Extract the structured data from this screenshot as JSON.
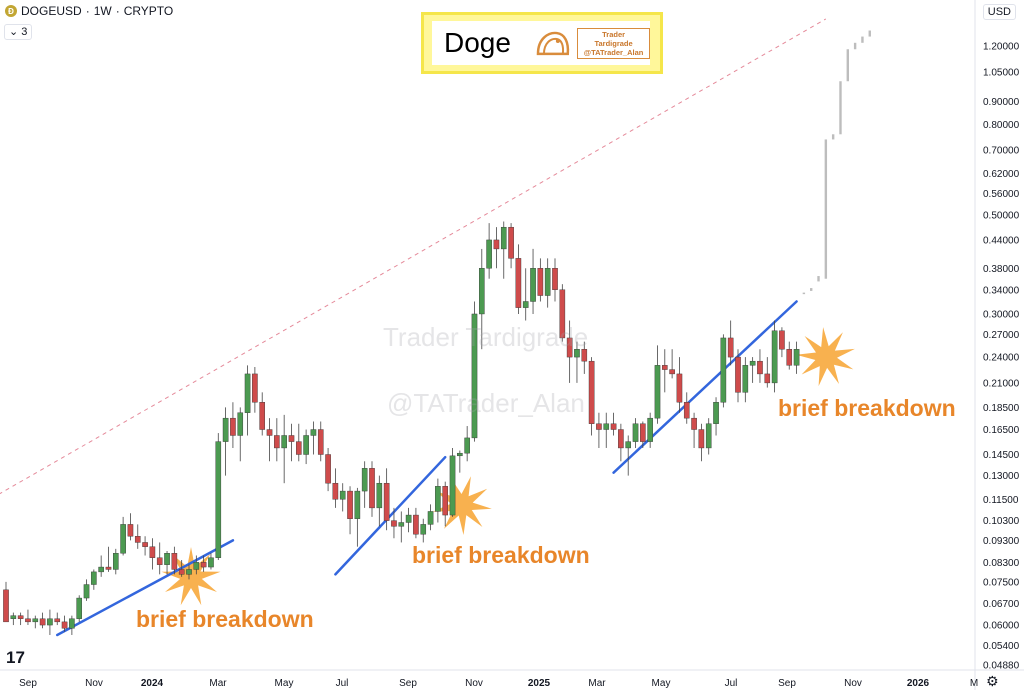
{
  "header": {
    "symbol": "DOGEUSD",
    "interval": "1W",
    "exchange": "CRYPTO",
    "separator": " · ",
    "indicator_count": "3",
    "currency": "USD"
  },
  "logo": {
    "title": "Doge",
    "brand_line1": "Trader Tardigrade",
    "brand_line2": "@TATrader_Alan"
  },
  "watermark": {
    "line1": "Trader Tardigrade",
    "line2": "@TATrader_Alan"
  },
  "annotations": [
    "brief breakdown",
    "brief breakdown",
    "brief breakdown"
  ],
  "tradingview_mark": "17",
  "colors": {
    "up": "#4c9a51",
    "down": "#cf4b4b",
    "projection": "#bdbdbd",
    "support": "#3366dd",
    "resistance": "#e58a9a",
    "starburst": "#f7a83c",
    "annotation": "#e8862a",
    "logo_bg": "#fff79a"
  },
  "chart_data": {
    "type": "candlestick",
    "title": "",
    "xlabel": "",
    "ylabel": "",
    "y_scale": "log",
    "ylim": [
      0.0485,
      1.33
    ],
    "y_ticks": [
      "1.20000",
      "1.05000",
      "0.90000",
      "0.80000",
      "0.70000",
      "0.62000",
      "0.56000",
      "0.50000",
      "0.44000",
      "0.38000",
      "0.34000",
      "0.30000",
      "0.27000",
      "0.24000",
      "0.21000",
      "0.18500",
      "0.16500",
      "0.14500",
      "0.13000",
      "0.11500",
      "0.10300",
      "0.09300",
      "0.08300",
      "0.07500",
      "0.06700",
      "0.06000",
      "0.05400",
      "0.04880"
    ],
    "x_ticks": [
      "Sep",
      "Nov",
      "2024",
      "Mar",
      "May",
      "Jul",
      "Sep",
      "Nov",
      "2025",
      "Mar",
      "May",
      "Jul",
      "Sep",
      "Nov",
      "2026",
      "M"
    ],
    "grid": false,
    "candles": [
      {
        "o": 0.072,
        "h": 0.075,
        "l": 0.062,
        "c": 0.061
      },
      {
        "o": 0.062,
        "h": 0.064,
        "l": 0.06,
        "c": 0.063
      },
      {
        "o": 0.063,
        "h": 0.064,
        "l": 0.06,
        "c": 0.062
      },
      {
        "o": 0.062,
        "h": 0.065,
        "l": 0.06,
        "c": 0.061
      },
      {
        "o": 0.061,
        "h": 0.063,
        "l": 0.059,
        "c": 0.062
      },
      {
        "o": 0.062,
        "h": 0.064,
        "l": 0.059,
        "c": 0.06
      },
      {
        "o": 0.06,
        "h": 0.065,
        "l": 0.057,
        "c": 0.062
      },
      {
        "o": 0.062,
        "h": 0.064,
        "l": 0.06,
        "c": 0.061
      },
      {
        "o": 0.061,
        "h": 0.063,
        "l": 0.058,
        "c": 0.059
      },
      {
        "o": 0.059,
        "h": 0.063,
        "l": 0.057,
        "c": 0.062
      },
      {
        "o": 0.062,
        "h": 0.07,
        "l": 0.061,
        "c": 0.069
      },
      {
        "o": 0.069,
        "h": 0.076,
        "l": 0.068,
        "c": 0.074
      },
      {
        "o": 0.074,
        "h": 0.08,
        "l": 0.072,
        "c": 0.079
      },
      {
        "o": 0.079,
        "h": 0.086,
        "l": 0.077,
        "c": 0.081
      },
      {
        "o": 0.081,
        "h": 0.09,
        "l": 0.079,
        "c": 0.08
      },
      {
        "o": 0.08,
        "h": 0.089,
        "l": 0.078,
        "c": 0.087
      },
      {
        "o": 0.087,
        "h": 0.105,
        "l": 0.086,
        "c": 0.101
      },
      {
        "o": 0.101,
        "h": 0.107,
        "l": 0.093,
        "c": 0.095
      },
      {
        "o": 0.095,
        "h": 0.101,
        "l": 0.089,
        "c": 0.092
      },
      {
        "o": 0.092,
        "h": 0.095,
        "l": 0.086,
        "c": 0.09
      },
      {
        "o": 0.09,
        "h": 0.094,
        "l": 0.08,
        "c": 0.085
      },
      {
        "o": 0.085,
        "h": 0.092,
        "l": 0.078,
        "c": 0.082
      },
      {
        "o": 0.082,
        "h": 0.088,
        "l": 0.078,
        "c": 0.087
      },
      {
        "o": 0.087,
        "h": 0.09,
        "l": 0.078,
        "c": 0.08
      },
      {
        "o": 0.08,
        "h": 0.084,
        "l": 0.077,
        "c": 0.078
      },
      {
        "o": 0.078,
        "h": 0.082,
        "l": 0.076,
        "c": 0.08
      },
      {
        "o": 0.08,
        "h": 0.086,
        "l": 0.078,
        "c": 0.083
      },
      {
        "o": 0.083,
        "h": 0.086,
        "l": 0.079,
        "c": 0.081
      },
      {
        "o": 0.081,
        "h": 0.087,
        "l": 0.08,
        "c": 0.085
      },
      {
        "o": 0.085,
        "h": 0.162,
        "l": 0.084,
        "c": 0.155
      },
      {
        "o": 0.155,
        "h": 0.185,
        "l": 0.13,
        "c": 0.175
      },
      {
        "o": 0.175,
        "h": 0.19,
        "l": 0.15,
        "c": 0.16
      },
      {
        "o": 0.16,
        "h": 0.185,
        "l": 0.14,
        "c": 0.18
      },
      {
        "o": 0.18,
        "h": 0.23,
        "l": 0.16,
        "c": 0.22
      },
      {
        "o": 0.22,
        "h": 0.228,
        "l": 0.18,
        "c": 0.19
      },
      {
        "o": 0.19,
        "h": 0.2,
        "l": 0.16,
        "c": 0.165
      },
      {
        "o": 0.165,
        "h": 0.175,
        "l": 0.14,
        "c": 0.16
      },
      {
        "o": 0.16,
        "h": 0.175,
        "l": 0.14,
        "c": 0.15
      },
      {
        "o": 0.15,
        "h": 0.178,
        "l": 0.125,
        "c": 0.16
      },
      {
        "o": 0.16,
        "h": 0.17,
        "l": 0.14,
        "c": 0.155
      },
      {
        "o": 0.155,
        "h": 0.17,
        "l": 0.14,
        "c": 0.145
      },
      {
        "o": 0.145,
        "h": 0.165,
        "l": 0.138,
        "c": 0.16
      },
      {
        "o": 0.16,
        "h": 0.172,
        "l": 0.145,
        "c": 0.165
      },
      {
        "o": 0.165,
        "h": 0.172,
        "l": 0.14,
        "c": 0.145
      },
      {
        "o": 0.145,
        "h": 0.15,
        "l": 0.12,
        "c": 0.125
      },
      {
        "o": 0.125,
        "h": 0.135,
        "l": 0.11,
        "c": 0.115
      },
      {
        "o": 0.115,
        "h": 0.125,
        "l": 0.108,
        "c": 0.12
      },
      {
        "o": 0.12,
        "h": 0.123,
        "l": 0.096,
        "c": 0.104
      },
      {
        "o": 0.104,
        "h": 0.122,
        "l": 0.09,
        "c": 0.12
      },
      {
        "o": 0.12,
        "h": 0.14,
        "l": 0.11,
        "c": 0.135
      },
      {
        "o": 0.135,
        "h": 0.14,
        "l": 0.105,
        "c": 0.11
      },
      {
        "o": 0.11,
        "h": 0.13,
        "l": 0.1,
        "c": 0.125
      },
      {
        "o": 0.125,
        "h": 0.135,
        "l": 0.098,
        "c": 0.103
      },
      {
        "o": 0.103,
        "h": 0.11,
        "l": 0.094,
        "c": 0.1
      },
      {
        "o": 0.1,
        "h": 0.108,
        "l": 0.092,
        "c": 0.102
      },
      {
        "o": 0.102,
        "h": 0.11,
        "l": 0.097,
        "c": 0.106
      },
      {
        "o": 0.106,
        "h": 0.11,
        "l": 0.094,
        "c": 0.096
      },
      {
        "o": 0.096,
        "h": 0.104,
        "l": 0.092,
        "c": 0.101
      },
      {
        "o": 0.101,
        "h": 0.112,
        "l": 0.098,
        "c": 0.108
      },
      {
        "o": 0.108,
        "h": 0.128,
        "l": 0.102,
        "c": 0.123
      },
      {
        "o": 0.123,
        "h": 0.126,
        "l": 0.1,
        "c": 0.106
      },
      {
        "o": 0.106,
        "h": 0.15,
        "l": 0.105,
        "c": 0.144
      },
      {
        "o": 0.144,
        "h": 0.148,
        "l": 0.132,
        "c": 0.146
      },
      {
        "o": 0.146,
        "h": 0.168,
        "l": 0.14,
        "c": 0.158
      },
      {
        "o": 0.158,
        "h": 0.32,
        "l": 0.155,
        "c": 0.3
      },
      {
        "o": 0.3,
        "h": 0.42,
        "l": 0.25,
        "c": 0.38
      },
      {
        "o": 0.38,
        "h": 0.48,
        "l": 0.36,
        "c": 0.44
      },
      {
        "o": 0.44,
        "h": 0.47,
        "l": 0.38,
        "c": 0.42
      },
      {
        "o": 0.42,
        "h": 0.484,
        "l": 0.36,
        "c": 0.47
      },
      {
        "o": 0.47,
        "h": 0.48,
        "l": 0.38,
        "c": 0.4
      },
      {
        "o": 0.4,
        "h": 0.43,
        "l": 0.3,
        "c": 0.31
      },
      {
        "o": 0.31,
        "h": 0.38,
        "l": 0.29,
        "c": 0.32
      },
      {
        "o": 0.32,
        "h": 0.42,
        "l": 0.3,
        "c": 0.38
      },
      {
        "o": 0.38,
        "h": 0.4,
        "l": 0.32,
        "c": 0.33
      },
      {
        "o": 0.33,
        "h": 0.4,
        "l": 0.31,
        "c": 0.38
      },
      {
        "o": 0.38,
        "h": 0.4,
        "l": 0.32,
        "c": 0.34
      },
      {
        "o": 0.34,
        "h": 0.35,
        "l": 0.26,
        "c": 0.265
      },
      {
        "o": 0.265,
        "h": 0.29,
        "l": 0.21,
        "c": 0.24
      },
      {
        "o": 0.24,
        "h": 0.26,
        "l": 0.21,
        "c": 0.25
      },
      {
        "o": 0.25,
        "h": 0.26,
        "l": 0.22,
        "c": 0.235
      },
      {
        "o": 0.235,
        "h": 0.24,
        "l": 0.16,
        "c": 0.17
      },
      {
        "o": 0.17,
        "h": 0.18,
        "l": 0.15,
        "c": 0.165
      },
      {
        "o": 0.165,
        "h": 0.18,
        "l": 0.15,
        "c": 0.17
      },
      {
        "o": 0.17,
        "h": 0.18,
        "l": 0.16,
        "c": 0.165
      },
      {
        "o": 0.165,
        "h": 0.17,
        "l": 0.14,
        "c": 0.15
      },
      {
        "o": 0.15,
        "h": 0.16,
        "l": 0.13,
        "c": 0.155
      },
      {
        "o": 0.155,
        "h": 0.175,
        "l": 0.15,
        "c": 0.17
      },
      {
        "o": 0.17,
        "h": 0.172,
        "l": 0.15,
        "c": 0.155
      },
      {
        "o": 0.155,
        "h": 0.18,
        "l": 0.15,
        "c": 0.175
      },
      {
        "o": 0.175,
        "h": 0.255,
        "l": 0.17,
        "c": 0.23
      },
      {
        "o": 0.23,
        "h": 0.25,
        "l": 0.2,
        "c": 0.225
      },
      {
        "o": 0.225,
        "h": 0.25,
        "l": 0.215,
        "c": 0.22
      },
      {
        "o": 0.22,
        "h": 0.24,
        "l": 0.18,
        "c": 0.19
      },
      {
        "o": 0.19,
        "h": 0.2,
        "l": 0.17,
        "c": 0.175
      },
      {
        "o": 0.175,
        "h": 0.18,
        "l": 0.15,
        "c": 0.165
      },
      {
        "o": 0.165,
        "h": 0.17,
        "l": 0.14,
        "c": 0.15
      },
      {
        "o": 0.15,
        "h": 0.175,
        "l": 0.145,
        "c": 0.17
      },
      {
        "o": 0.17,
        "h": 0.195,
        "l": 0.16,
        "c": 0.19
      },
      {
        "o": 0.19,
        "h": 0.27,
        "l": 0.185,
        "c": 0.265
      },
      {
        "o": 0.265,
        "h": 0.29,
        "l": 0.23,
        "c": 0.24
      },
      {
        "o": 0.24,
        "h": 0.25,
        "l": 0.19,
        "c": 0.2
      },
      {
        "o": 0.2,
        "h": 0.24,
        "l": 0.19,
        "c": 0.23
      },
      {
        "o": 0.23,
        "h": 0.24,
        "l": 0.21,
        "c": 0.235
      },
      {
        "o": 0.235,
        "h": 0.25,
        "l": 0.21,
        "c": 0.22
      },
      {
        "o": 0.22,
        "h": 0.24,
        "l": 0.205,
        "c": 0.21
      },
      {
        "o": 0.21,
        "h": 0.29,
        "l": 0.2,
        "c": 0.275
      },
      {
        "o": 0.275,
        "h": 0.28,
        "l": 0.24,
        "c": 0.25
      },
      {
        "o": 0.25,
        "h": 0.26,
        "l": 0.225,
        "c": 0.23
      },
      {
        "o": 0.23,
        "h": 0.26,
        "l": 0.22,
        "c": 0.25
      }
    ],
    "projection": [
      {
        "l": 0.335,
        "h": 0.335
      },
      {
        "l": 0.338,
        "h": 0.343
      },
      {
        "l": 0.355,
        "h": 0.365
      },
      {
        "l": 0.36,
        "h": 0.74
      },
      {
        "l": 0.74,
        "h": 0.76
      },
      {
        "l": 0.76,
        "h": 1.0
      },
      {
        "l": 1.0,
        "h": 1.18
      },
      {
        "l": 1.18,
        "h": 1.22
      },
      {
        "l": 1.22,
        "h": 1.26
      },
      {
        "l": 1.26,
        "h": 1.3
      }
    ],
    "support_lines": [
      {
        "from": [
          7,
          0.057
        ],
        "to": [
          31,
          0.093
        ]
      },
      {
        "from": [
          45,
          0.078
        ],
        "to": [
          60,
          0.143
        ]
      },
      {
        "from": [
          83,
          0.132
        ],
        "to": [
          108,
          0.32
        ]
      }
    ],
    "resistance_line": {
      "from": [
        -1,
        0.118
      ],
      "to": [
        112,
        1.38
      ]
    }
  }
}
